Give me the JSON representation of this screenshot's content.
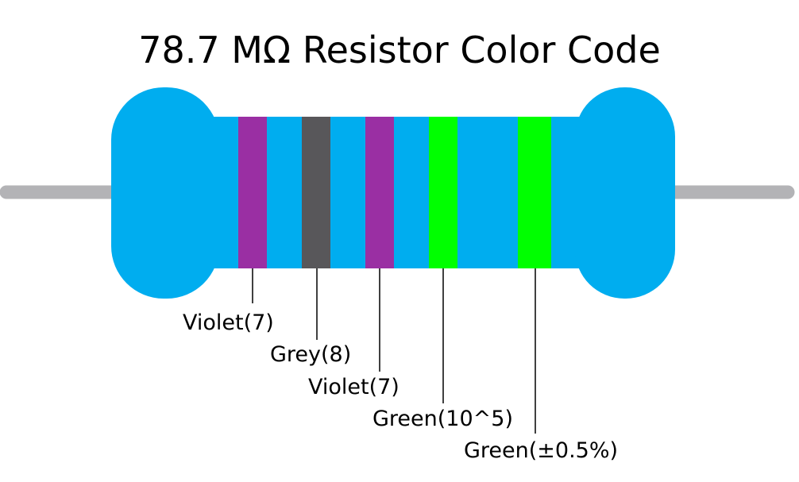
{
  "title": "78.7 MΩ Resistor Color Code",
  "colors": {
    "body": "#00adef",
    "lead": "#b3b3b6",
    "leader_line": "#000000",
    "background": "#ffffff"
  },
  "bands": [
    {
      "color_name": "Violet",
      "hex": "#9a2fa3",
      "label": "Violet(7)"
    },
    {
      "color_name": "Grey",
      "hex": "#58575a",
      "label": "Grey(8)"
    },
    {
      "color_name": "Violet",
      "hex": "#9a2fa3",
      "label": "Violet(7)"
    },
    {
      "color_name": "Green",
      "hex": "#00ff00",
      "label": "Green(10^5)"
    },
    {
      "color_name": "Green",
      "hex": "#00ff00",
      "label": "Green(±0.5%)"
    }
  ]
}
